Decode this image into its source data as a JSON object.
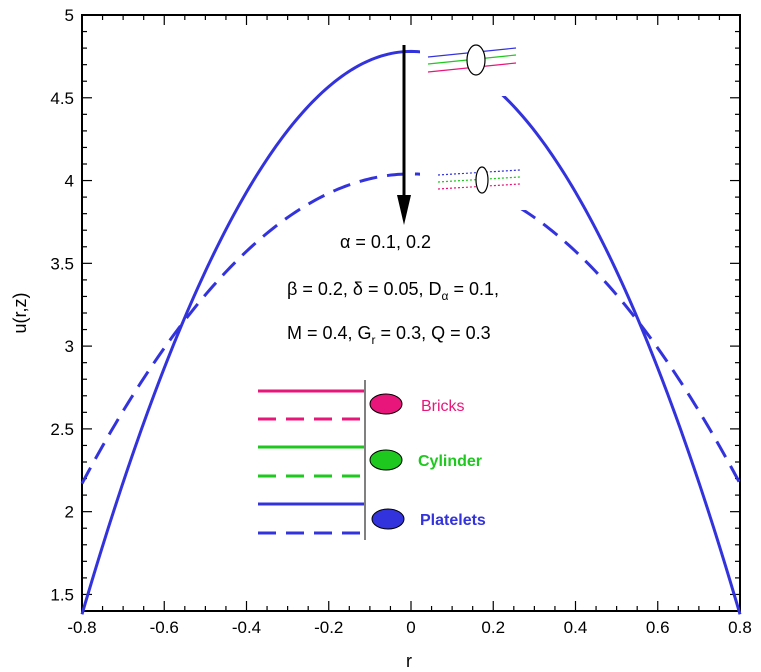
{
  "chart_data": {
    "type": "line",
    "xlabel": "r",
    "ylabel": "u(r,z)",
    "xlim": [
      -0.8,
      0.8
    ],
    "ylim": [
      1.4,
      5.0
    ],
    "xticks": [
      "-0.8",
      "-0.6",
      "-0.4",
      "-0.2",
      "0",
      "0.2",
      "0.4",
      "0.6",
      "0.8"
    ],
    "yticks": [
      "1.5",
      "2",
      "2.5",
      "3",
      "3.5",
      "4",
      "4.5",
      "5"
    ],
    "grid": false,
    "series": [
      {
        "alpha": 0.1,
        "style": "solid",
        "color": "#3333dd",
        "x": [
          -0.8,
          -0.6,
          -0.4,
          -0.2,
          0.0,
          0.2,
          0.4,
          0.6,
          0.8
        ],
        "y": [
          1.38,
          3.04,
          4.22,
          4.61,
          4.78,
          4.61,
          4.22,
          3.04,
          1.38
        ]
      },
      {
        "alpha": 0.2,
        "style": "dashed",
        "color": "#3333dd",
        "x": [
          -0.8,
          -0.6,
          -0.4,
          -0.2,
          0.0,
          0.2,
          0.4,
          0.6,
          0.8
        ],
        "y": [
          2.17,
          3.05,
          3.62,
          3.93,
          4.04,
          3.93,
          3.62,
          3.05,
          2.17
        ]
      }
    ],
    "annotation": {
      "line1": {
        "sym": "α",
        "text": " =  0.1, 0.2"
      },
      "line2": {
        "p1": "β = 0.2, ",
        "p2": "δ",
        "p3": " = 0.05, D",
        "sub": "α",
        "p4": " = 0.1,"
      },
      "line3": {
        "p1": "M = 0.4, G",
        "sub": "r",
        "p2": " = 0.3, Q = 0.3"
      }
    },
    "legend": [
      {
        "label": "Bricks",
        "color": "#e8167a"
      },
      {
        "label": "Cylinder",
        "color": "#1ec81e"
      },
      {
        "label": "Platelets",
        "color": "#3333dd"
      }
    ],
    "colors": {
      "bricks": "#e8167a",
      "cylinder": "#1ec81e",
      "platelets": "#3333dd",
      "axis": "#000000"
    }
  }
}
